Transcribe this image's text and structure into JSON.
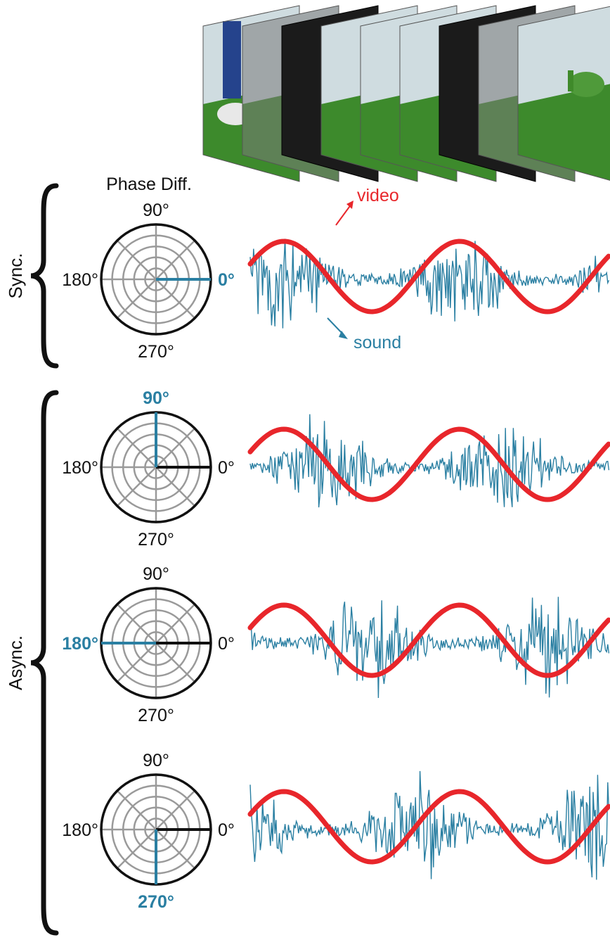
{
  "colors": {
    "video_curve": "#e8262b",
    "sound_wave": "#2a7fa2",
    "phase_needle": "#2a7fa2",
    "axis_needle": "#111111",
    "polar_grid": "#9a9a9a",
    "text": "#111111",
    "grass": "#3d8a2c",
    "sky": "#cfdce0",
    "blank_frame": "#1b1b1b"
  },
  "filmstrip": {
    "frames": [
      "scene",
      "faded",
      "black",
      "scene",
      "scene",
      "scene",
      "black",
      "faded",
      "scene"
    ]
  },
  "groups": {
    "sync_label": "Sync.",
    "async_label": "Async."
  },
  "header": {
    "phase_diff_title": "Phase Diff."
  },
  "annotations": {
    "video": "video",
    "sound": "sound"
  },
  "rows": [
    {
      "phase_deg": 0,
      "labels": {
        "top": "90°",
        "left": "180°",
        "right": "0°",
        "bottom": "270°"
      },
      "highlight": "right"
    },
    {
      "phase_deg": 90,
      "labels": {
        "top": "90°",
        "left": "180°",
        "right": "0°",
        "bottom": "270°"
      },
      "highlight": "top"
    },
    {
      "phase_deg": 180,
      "labels": {
        "top": "90°",
        "left": "180°",
        "right": "0°",
        "bottom": "270°"
      },
      "highlight": "left"
    },
    {
      "phase_deg": 270,
      "labels": {
        "top": "90°",
        "left": "180°",
        "right": "0°",
        "bottom": "270°"
      },
      "highlight": "bottom"
    }
  ]
}
